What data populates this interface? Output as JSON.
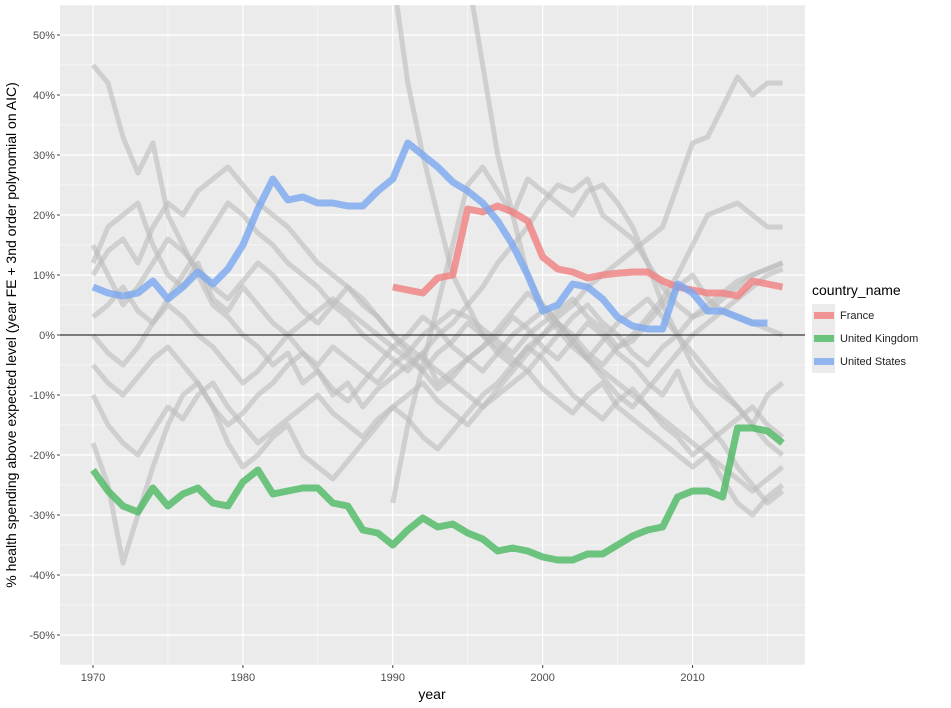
{
  "chart_data": {
    "type": "line",
    "xlabel": "year",
    "ylabel": "% health spending above expected level (year FE + 3nd order polynomial on AIC)",
    "xlim": [
      1967.8,
      2017.5
    ],
    "ylim": [
      -55,
      55
    ],
    "x_ticks": [
      1970,
      1980,
      1990,
      2000,
      2010
    ],
    "x_tick_labels": [
      "1970",
      "1980",
      "1990",
      "2000",
      "2010"
    ],
    "y_ticks": [
      -50,
      -40,
      -30,
      -20,
      -10,
      0,
      10,
      20,
      30,
      40,
      50
    ],
    "y_tick_labels": [
      "-50%",
      "-40%",
      "-30%",
      "-20%",
      "-10%",
      "0%",
      "10%",
      "20%",
      "30%",
      "40%",
      "50%"
    ],
    "grid": true,
    "reference_line_y": 0,
    "legend": {
      "title": "country_name",
      "placement": "right"
    },
    "series": [
      {
        "name": "France",
        "color": "#F08080",
        "start_year": 1990,
        "values": [
          8,
          7.5,
          7,
          9.5,
          10,
          21,
          20.5,
          21.5,
          20.5,
          19,
          13,
          11,
          10.5,
          9.5,
          10,
          10.3,
          10.5,
          10.5,
          9,
          8,
          7.5,
          7,
          7,
          6.5,
          9,
          8.5,
          8
        ]
      },
      {
        "name": "United Kingdom",
        "color": "#4CB963",
        "start_year": 1970,
        "values": [
          -22.5,
          -26,
          -28.5,
          -29.5,
          -25.5,
          -28.5,
          -26.5,
          -25.5,
          -28,
          -28.5,
          -24.5,
          -22.5,
          -26.5,
          -26,
          -25.5,
          -25.5,
          -28,
          -28.5,
          -32.5,
          -33,
          -35,
          -32.5,
          -30.5,
          -32,
          -31.5,
          -33,
          -34,
          -36,
          -35.5,
          -36,
          -37,
          -37.5,
          -37.5,
          -36.5,
          -36.5,
          -35,
          -33.5,
          -32.5,
          -32,
          -27,
          -26,
          -26,
          -27,
          -15.5,
          -15.5,
          -16,
          -18
        ]
      },
      {
        "name": "United States",
        "color": "#7BA7F0",
        "start_year": 1970,
        "values": [
          8,
          7,
          6.5,
          7,
          9,
          6,
          8,
          10.5,
          8.5,
          11,
          15,
          21,
          26,
          22.5,
          23,
          22,
          22,
          21.5,
          21.5,
          24,
          26,
          32,
          30,
          28,
          25.5,
          24,
          22,
          19,
          15,
          10,
          4,
          5,
          8.5,
          8,
          6,
          3,
          1.5,
          1,
          1,
          8.5,
          7,
          4,
          4,
          3,
          2,
          2
        ]
      }
    ],
    "background_series": [
      {
        "start_year": 1970,
        "values": [
          45,
          42,
          33,
          27,
          32,
          20,
          15,
          10,
          5,
          3,
          0,
          -2,
          -5,
          -3,
          -8,
          -6,
          -10,
          -8,
          -12,
          -9,
          -7,
          -5,
          -3,
          -8,
          -6,
          -4,
          -2,
          0,
          3,
          1,
          -2,
          -4,
          -1,
          2,
          0,
          -3,
          -5,
          -8,
          -10,
          -6,
          -12,
          -15,
          -18,
          -22,
          -25,
          -28,
          -26
        ]
      },
      {
        "start_year": 1970,
        "values": [
          12,
          18,
          20,
          22,
          15,
          10,
          8,
          12,
          6,
          4,
          8,
          5,
          2,
          0,
          -3,
          -5,
          -2,
          -4,
          -6,
          -8,
          -5,
          -3,
          0,
          2,
          4,
          3,
          1,
          -1,
          -3,
          0,
          2,
          4,
          6,
          3,
          1,
          -2,
          -1,
          2,
          5,
          8,
          10,
          6,
          4,
          3,
          2,
          1,
          0
        ]
      },
      {
        "start_year": 1970,
        "values": [
          -10,
          -15,
          -18,
          -20,
          -16,
          -12,
          -14,
          -10,
          -8,
          -12,
          -15,
          -18,
          -16,
          -14,
          -12,
          -10,
          -13,
          -15,
          -17,
          -14,
          -12,
          -10,
          -8,
          -11,
          -13,
          -15,
          -12,
          -10,
          -8,
          -6,
          -9,
          -11,
          -13,
          -10,
          -8,
          -12,
          -14,
          -16,
          -18,
          -20,
          -22,
          -20,
          -24,
          -28,
          -30,
          -27,
          -25
        ]
      },
      {
        "start_year": 1970,
        "values": [
          3,
          5,
          8,
          4,
          2,
          6,
          10,
          14,
          18,
          22,
          20,
          17,
          15,
          12,
          10,
          8,
          5,
          3,
          0,
          -2,
          -4,
          -6,
          -3,
          0,
          2,
          5,
          8,
          12,
          15,
          18,
          22,
          25,
          24,
          26,
          20,
          18,
          16,
          12,
          8,
          5,
          3,
          4,
          6,
          8,
          10,
          11,
          12
        ]
      },
      {
        "start_year": 1970,
        "values": [
          -18,
          -25,
          -38,
          -30,
          -22,
          -15,
          -10,
          -8,
          -12,
          -18,
          -22,
          -20,
          -17,
          -15,
          -20,
          -22,
          -24,
          -21,
          -18,
          -15,
          -12,
          -14,
          -17,
          -19,
          -16,
          -13,
          -10,
          -8,
          -5,
          -2,
          -4,
          -7,
          -10,
          -12,
          -14,
          -11,
          -9,
          -12,
          -15,
          -17,
          -20,
          -18,
          -16,
          -14,
          -12,
          -15,
          -17
        ]
      },
      {
        "start_year": 1970,
        "values": [
          0,
          -3,
          -5,
          -2,
          2,
          5,
          3,
          0,
          -2,
          -5,
          -8,
          -6,
          -3,
          0,
          2,
          4,
          6,
          4,
          2,
          0,
          -2,
          -4,
          -6,
          -3,
          -1,
          2,
          0,
          -2,
          -4,
          -6,
          -3,
          0,
          3,
          5,
          2,
          0,
          -3,
          -5,
          -2,
          0,
          3,
          5,
          7,
          9,
          10,
          11,
          12
        ]
      },
      {
        "start_year": 1970,
        "values": [
          10,
          14,
          16,
          12,
          18,
          22,
          20,
          24,
          26,
          28,
          25,
          22,
          20,
          18,
          15,
          12,
          10,
          8,
          5,
          3,
          0,
          -2,
          -4,
          -6,
          -8,
          -10,
          -12,
          -9,
          -6,
          -3,
          0,
          2,
          -1,
          -4,
          -6,
          -8,
          -10,
          -12,
          -14,
          -16,
          -18,
          -20,
          -22,
          -24,
          -26,
          -24,
          -22
        ]
      },
      {
        "start_year": 1990,
        "values": [
          60,
          42,
          30,
          20,
          10,
          5,
          0,
          -3,
          -5,
          -2,
          0,
          3,
          5,
          8,
          10,
          12,
          14,
          16,
          18,
          25,
          32,
          33,
          38,
          43,
          40,
          42,
          42
        ]
      },
      {
        "start_year": 1995,
        "values": [
          60,
          45,
          30,
          20,
          10,
          5,
          2,
          0,
          -3,
          -5,
          -2,
          0,
          3,
          6,
          10,
          15,
          20,
          21,
          22,
          20,
          18,
          18
        ]
      },
      {
        "start_year": 1990,
        "values": [
          -28,
          -15,
          -5,
          5,
          15,
          25,
          28,
          24,
          20,
          26,
          24,
          22,
          20,
          24,
          25,
          22,
          18,
          12,
          5,
          0,
          -5,
          -8,
          -10,
          -12,
          -15,
          -10,
          -8
        ]
      },
      {
        "start_year": 1970,
        "values": [
          -5,
          -8,
          -10,
          -7,
          -4,
          -2,
          -5,
          -8,
          -12,
          -15,
          -13,
          -10,
          -8,
          -5,
          -3,
          -6,
          -9,
          -11,
          -8,
          -5,
          -2,
          0,
          3,
          1,
          -2,
          -4,
          -6,
          -3,
          0,
          2,
          4,
          1,
          -2,
          -4,
          -1,
          2,
          4,
          6,
          3,
          0,
          -3,
          -6,
          -9,
          -12,
          -15,
          -18,
          -20
        ]
      },
      {
        "start_year": 1970,
        "values": [
          15,
          10,
          5,
          8,
          12,
          16,
          14,
          11,
          8,
          6,
          9,
          12,
          10,
          7,
          4,
          2,
          5,
          8,
          6,
          3,
          0,
          -3,
          -6,
          -9,
          -7,
          -4,
          -2,
          1,
          4,
          7,
          5,
          2,
          -1,
          -4,
          -7,
          -10,
          -12,
          -9,
          -6,
          -3,
          0,
          2,
          4,
          6,
          8,
          10,
          11
        ]
      }
    ]
  }
}
